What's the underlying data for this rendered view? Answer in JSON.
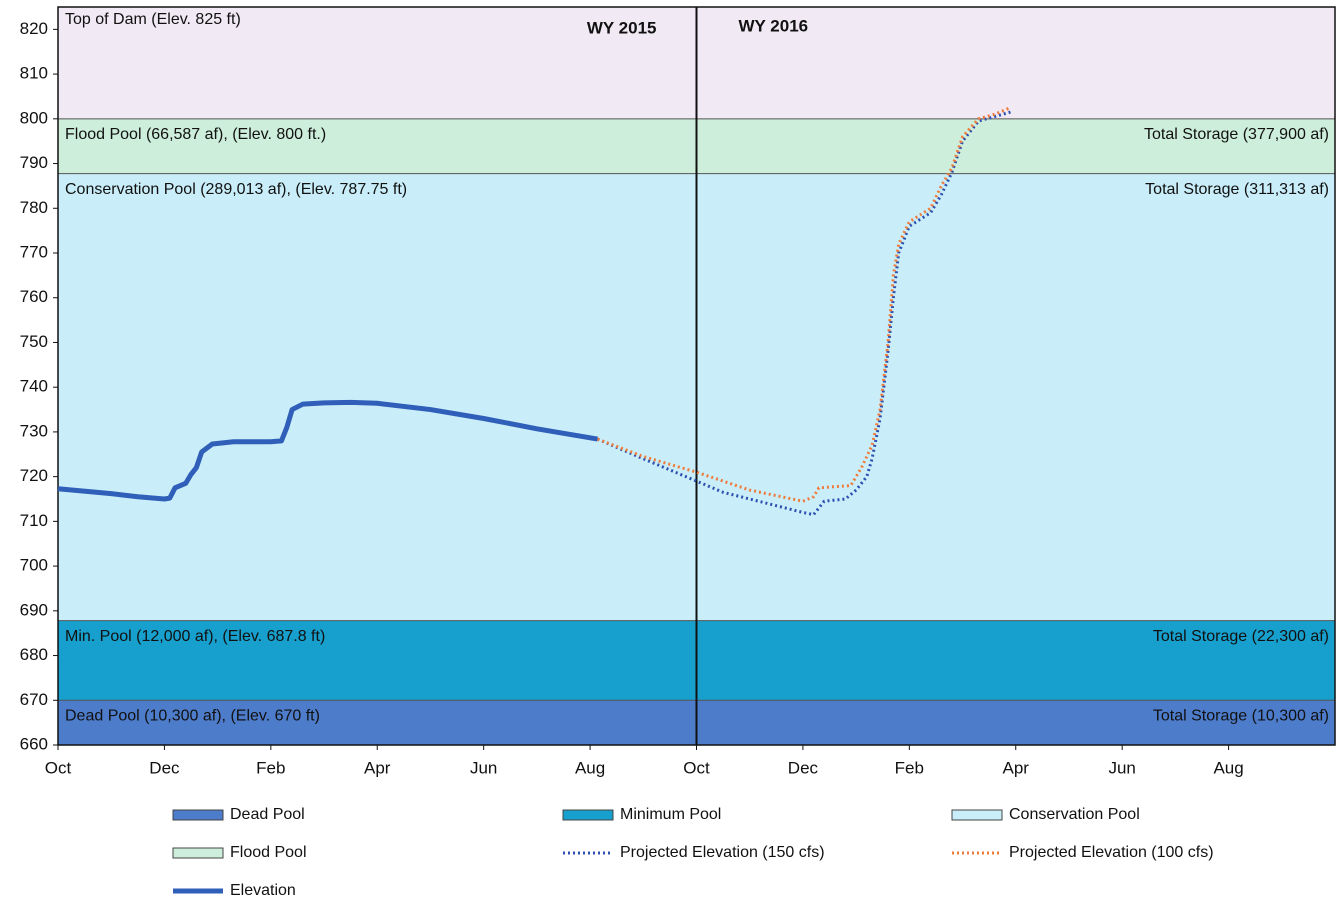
{
  "chart_data": {
    "type": "line",
    "xlim": [
      0,
      24
    ],
    "xticks": [
      {
        "value": 0,
        "label": "Oct"
      },
      {
        "value": 2,
        "label": "Dec"
      },
      {
        "value": 4,
        "label": "Feb"
      },
      {
        "value": 6,
        "label": "Apr"
      },
      {
        "value": 8,
        "label": "Jun"
      },
      {
        "value": 10,
        "label": "Aug"
      },
      {
        "value": 12,
        "label": "Oct"
      },
      {
        "value": 14,
        "label": "Dec"
      },
      {
        "value": 16,
        "label": "Feb"
      },
      {
        "value": 18,
        "label": "Apr"
      },
      {
        "value": 20,
        "label": "Jun"
      },
      {
        "value": 22,
        "label": "Aug"
      }
    ],
    "ylim": [
      660,
      825
    ],
    "yticks": [
      660,
      670,
      680,
      690,
      700,
      710,
      720,
      730,
      740,
      750,
      760,
      770,
      780,
      790,
      800,
      810,
      820
    ],
    "divider_x": 12,
    "annotations": [
      "WY 2015",
      "WY 2016"
    ],
    "bands": [
      {
        "name": "Dead Pool",
        "lower": 660,
        "upper": 670,
        "color": "#4d7ccb",
        "label": "Dead Pool (10,300 af), (Elev. 670 ft)",
        "storage_label": "Total Storage (10,300 af)"
      },
      {
        "name": "Minimum Pool",
        "lower": 670,
        "upper": 687.8,
        "color": "#17a0cd",
        "label": "Min. Pool (12,000 af), (Elev. 687.8 ft)",
        "storage_label": "Total Storage (22,300 af)"
      },
      {
        "name": "Conservation Pool",
        "lower": 687.8,
        "upper": 787.75,
        "color": "#c9eef9",
        "label": "Conservation Pool (289,013 af), (Elev. 787.75 ft)",
        "storage_label": "Total Storage (311,313 af)"
      },
      {
        "name": "Flood Pool",
        "lower": 787.75,
        "upper": 800,
        "color": "#cdeedb",
        "label": "Flood Pool (66,587 af), (Elev. 800 ft.)",
        "storage_label": "Total Storage (377,900 af)"
      },
      {
        "lower": 800,
        "upper": 825,
        "color": "#f1e9f3",
        "label": "Top of  Dam (Elev. 825 ft)"
      }
    ],
    "series": [
      {
        "name": "Elevation",
        "color": "#2f5fb8",
        "style": "solid",
        "x": [
          0,
          1,
          1.5,
          2,
          2.1,
          2.2,
          2.4,
          2.5,
          2.6,
          2.7,
          2.9,
          3.3,
          4,
          4.2,
          4.3,
          4.4,
          4.6,
          5,
          5.5,
          6,
          7,
          8,
          9,
          10.14
        ],
        "values": [
          717.3,
          716.2,
          715.5,
          715,
          715.2,
          717.5,
          718.5,
          720.5,
          722,
          725.5,
          727.3,
          727.8,
          727.8,
          728,
          731,
          735,
          736.2,
          736.5,
          736.6,
          736.4,
          735,
          733,
          730.7,
          728.4
        ]
      },
      {
        "name": "Projected Elevation (150 cfs)",
        "color": "#2c4fb0",
        "style": "dotted",
        "x": [
          10.14,
          11,
          12,
          12.5,
          13,
          13.5,
          14,
          14.2,
          14.4,
          14.8,
          15,
          15.2,
          15.3,
          15.45,
          15.6,
          15.7,
          15.8,
          16,
          16.4,
          16.6,
          16.8,
          17,
          17.3,
          17.6,
          17.9
        ],
        "values": [
          728.4,
          724,
          719,
          716.5,
          715,
          713.5,
          712,
          711.5,
          714.5,
          715,
          717,
          720,
          724,
          733,
          748,
          760,
          770,
          776,
          779,
          783,
          788,
          795,
          799.5,
          800.5,
          801.5
        ]
      },
      {
        "name": "Projected Elevation (100 cfs)",
        "color": "#f07a3a",
        "style": "dotted",
        "x": [
          10.14,
          11,
          12,
          13,
          14,
          14.2,
          14.3,
          14.9,
          15.1,
          15.3,
          15.45,
          15.6,
          15.7,
          15.8,
          16,
          16.4,
          16.6,
          16.8,
          17,
          17.3,
          17.6,
          17.9
        ],
        "values": [
          728.4,
          724.5,
          721,
          717,
          714.5,
          715.5,
          717.5,
          718,
          722,
          727,
          735,
          750,
          765,
          772,
          777,
          780,
          785,
          789,
          796,
          800,
          801,
          802.5
        ]
      }
    ]
  }
}
